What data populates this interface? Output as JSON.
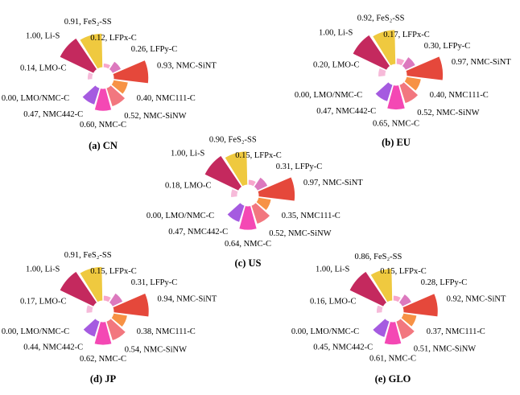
{
  "figure": {
    "description": "Five nightingale rose (polar) charts comparing battery chemistry scores by region",
    "value_range": [
      0,
      1
    ],
    "palette_by_category": {
      "LFPx-C": "#F7A6CC",
      "LFPy-C": "#DC79BE",
      "NMC-SiNT": "#E5483B",
      "NMC111-C": "#F79245",
      "NMC-SiNW": "#F2777F",
      "NMC-C": "#F448B4",
      "NMC442-C": "#A55BE0",
      "LMO/NMC-C": "#C9C9C9",
      "LMO-C": "#F6BAD9",
      "Li-S": "#C4295E",
      "FeS₂-SS": "#EFC93F"
    }
  },
  "chart_data": [
    {
      "type": "pie",
      "variant": "nightingale_rose",
      "title": "(a) CN",
      "region": "CN",
      "categories": [
        "LFPx-C",
        "LFPy-C",
        "NMC-SiNT",
        "NMC111-C",
        "NMC-SiNW",
        "NMC-C",
        "NMC442-C",
        "LMO/NMC-C",
        "LMO-C",
        "Li-S",
        "FeS₂-SS"
      ],
      "values": [
        0.12,
        0.26,
        0.93,
        0.4,
        0.52,
        0.6,
        0.47,
        0.0,
        0.14,
        1.0,
        0.91
      ],
      "value_range": [
        0,
        1
      ],
      "legend": "none",
      "labels_format": "value, category"
    },
    {
      "type": "pie",
      "variant": "nightingale_rose",
      "title": "(b) EU",
      "region": "EU",
      "categories": [
        "LFPx-C",
        "LFPy-C",
        "NMC-SiNT",
        "NMC111-C",
        "NMC-SiNW",
        "NMC-C",
        "NMC442-C",
        "LMO/NMC-C",
        "LMO-C",
        "Li-S",
        "FeS₂-SS"
      ],
      "values": [
        0.17,
        0.3,
        0.97,
        0.4,
        0.52,
        0.65,
        0.47,
        0.0,
        0.2,
        1.0,
        0.92
      ],
      "value_range": [
        0,
        1
      ],
      "legend": "none",
      "labels_format": "value, category"
    },
    {
      "type": "pie",
      "variant": "nightingale_rose",
      "title": "(c) US",
      "region": "US",
      "categories": [
        "LFPx-C",
        "LFPy-C",
        "NMC-SiNT",
        "NMC111-C",
        "NMC-SiNW",
        "NMC-C",
        "NMC442-C",
        "LMO/NMC-C",
        "LMO-C",
        "Li-S",
        "FeS₂-SS"
      ],
      "values": [
        0.15,
        0.31,
        0.97,
        0.35,
        0.52,
        0.64,
        0.47,
        0.0,
        0.18,
        1.0,
        0.9
      ],
      "value_range": [
        0,
        1
      ],
      "legend": "none",
      "labels_format": "value, category"
    },
    {
      "type": "pie",
      "variant": "nightingale_rose",
      "title": "(d) JP",
      "region": "JP",
      "categories": [
        "LFPx-C",
        "LFPy-C",
        "NMC-SiNT",
        "NMC111-C",
        "NMC-SiNW",
        "NMC-C",
        "NMC442-C",
        "LMO/NMC-C",
        "LMO-C",
        "Li-S",
        "FeS₂-SS"
      ],
      "values": [
        0.15,
        0.31,
        0.94,
        0.38,
        0.54,
        0.62,
        0.44,
        0.0,
        0.17,
        1.0,
        0.91
      ],
      "value_range": [
        0,
        1
      ],
      "legend": "none",
      "labels_format": "value, category"
    },
    {
      "type": "pie",
      "variant": "nightingale_rose",
      "title": "(e) GLO",
      "region": "GLO",
      "categories": [
        "LFPx-C",
        "LFPy-C",
        "NMC-SiNT",
        "NMC111-C",
        "NMC-SiNW",
        "NMC-C",
        "NMC442-C",
        "LMO/NMC-C",
        "LMO-C",
        "Li-S",
        "FeS₂-SS"
      ],
      "values": [
        0.15,
        0.28,
        0.92,
        0.37,
        0.51,
        0.61,
        0.45,
        0.0,
        0.16,
        1.0,
        0.86
      ],
      "value_range": [
        0,
        1
      ],
      "legend": "none",
      "labels_format": "value, category"
    }
  ]
}
